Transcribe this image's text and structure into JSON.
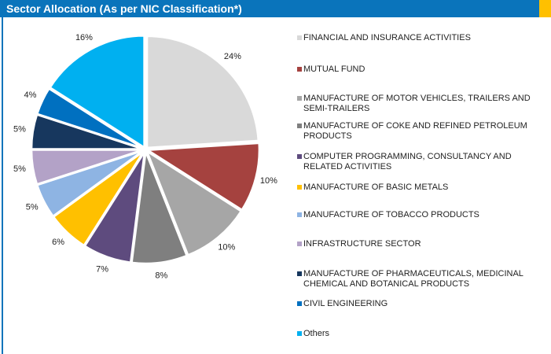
{
  "chart_data": {
    "type": "pie",
    "title": "Sector Allocation (As per NIC Classification*)",
    "categories": [
      "FINANCIAL AND INSURANCE ACTIVITIES",
      "MUTUAL FUND",
      "MANUFACTURE OF MOTOR VEHICLES, TRAILERS AND SEMI-TRAILERS",
      "MANUFACTURE OF COKE AND REFINED PETROLEUM PRODUCTS",
      "COMPUTER PROGRAMMING, CONSULTANCY AND RELATED ACTIVITIES",
      "MANUFACTURE OF BASIC METALS",
      "MANUFACTURE OF TOBACCO PRODUCTS",
      "INFRASTRUCTURE SECTOR",
      "MANUFACTURE OF PHARMACEUTICALS, MEDICINAL CHEMICAL AND BOTANICAL PRODUCTS",
      "CIVIL ENGINEERING",
      "Others"
    ],
    "values": [
      24,
      10,
      10,
      8,
      7,
      6,
      5,
      5,
      5,
      4,
      16
    ],
    "value_labels": [
      "24%",
      "10%",
      "10%",
      "8%",
      "7%",
      "6%",
      "5%",
      "5%",
      "5%",
      "4%",
      "16%"
    ],
    "colors": [
      "#d9d9d9",
      "#a5423f",
      "#a6a6a6",
      "#7f7f7f",
      "#5e4b7e",
      "#ffc000",
      "#8eb4e3",
      "#b3a2c7",
      "#17375e",
      "#0070c0",
      "#00b0f0"
    ]
  }
}
